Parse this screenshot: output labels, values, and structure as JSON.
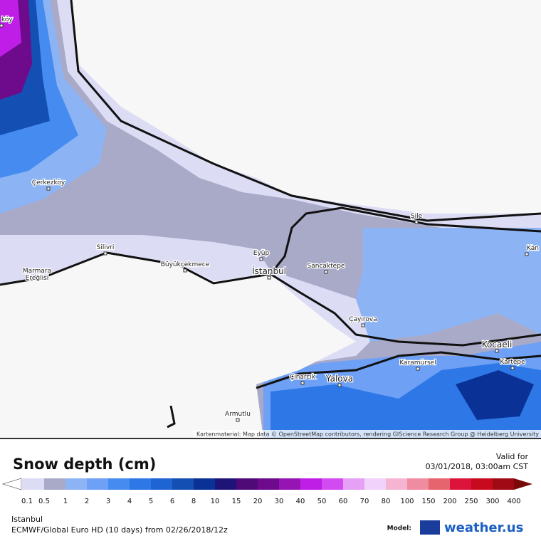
{
  "map": {
    "places": [
      "köy",
      "Çerkezköy",
      "Silivri",
      "Marmara\nEreğlisi",
      "Büyükçekmece",
      "Eyüp",
      "İstanbul",
      "Sancaktepe",
      "Şile",
      "Kan",
      "Çayırova",
      "Kocaeli",
      "Kartepe",
      "Karamürsel",
      "Çınarcık",
      "Yalova",
      "Armutlu"
    ],
    "attribution": "Kartenmaterial: Map data © OpenStreetMap contributors, rendering GIScience Research Group @ Heidelberg University"
  },
  "legend": {
    "title": "Snow depth (cm)",
    "valid_label": "Valid for",
    "valid_time": "03/01/2018, 03:00am CST",
    "ticks": [
      0.1,
      0.5,
      1,
      2,
      3,
      4,
      5,
      6,
      8,
      10,
      15,
      20,
      30,
      40,
      50,
      60,
      70,
      80,
      100,
      150,
      200,
      250,
      300,
      400
    ],
    "colors": [
      "#dcdcf5",
      "#a9a9c8",
      "#8cb4f5",
      "#6ea0f5",
      "#468cf0",
      "#2d78e6",
      "#1e64d2",
      "#1450b4",
      "#0a3296",
      "#1e1478",
      "#500a78",
      "#6e0a8c",
      "#9614b4",
      "#be1ee6",
      "#d24bf0",
      "#e6a0f5",
      "#f0d2fa",
      "#f5b4d2",
      "#f08ca0",
      "#e6646e",
      "#dc143c",
      "#c80a1e",
      "#a00a14",
      "#780a0a"
    ]
  },
  "footer": {
    "location": "Istanbul",
    "model_run": "ECMWF/Global Euro HD (10 days) from 02/26/2018/12z",
    "model_label": "Model:",
    "brand": "weather.us"
  }
}
